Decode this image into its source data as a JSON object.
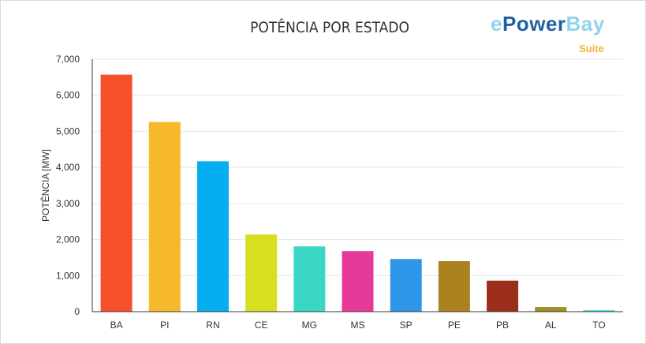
{
  "header": {
    "title": "POTÊNCIA POR ESTADO",
    "logo_e": "e",
    "logo_power": "Power",
    "logo_bay": "Bay",
    "logo_sub": "Suite"
  },
  "chart_data": {
    "type": "bar",
    "title": "POTÊNCIA POR ESTADO",
    "xlabel": "",
    "ylabel": "POTÊNCIA [MW]",
    "categories": [
      "BA",
      "PI",
      "RN",
      "CE",
      "MG",
      "MS",
      "SP",
      "PE",
      "PB",
      "AL",
      "TO"
    ],
    "values": [
      6570,
      5260,
      4170,
      2140,
      1810,
      1680,
      1460,
      1400,
      860,
      130,
      40
    ],
    "colors": [
      "#f5502a",
      "#f7b92c",
      "#04aef0",
      "#d6e021",
      "#3ad8c4",
      "#e63a9b",
      "#2d96e9",
      "#ac8220",
      "#9a2e1a",
      "#9a9122",
      "#3cdcdc"
    ],
    "yticks": [
      "0",
      "1,000",
      "2,000",
      "3,000",
      "4,000",
      "5,000",
      "6,000",
      "7,000"
    ],
    "ylim": [
      0,
      7000
    ],
    "grid": true,
    "legend": "none"
  }
}
